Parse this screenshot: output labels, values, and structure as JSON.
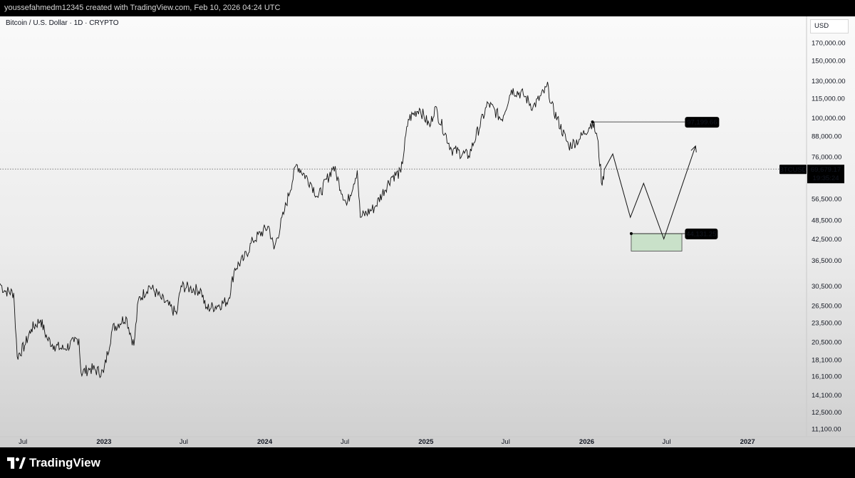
{
  "header": {
    "caption": "youssefahmedm12345 created with TradingView.com, Feb 10, 2026 04:24 UTC"
  },
  "chart": {
    "symbol_title": "Bitcoin / U.S. Dollar · 1D · CRYPTO",
    "currency": "USD"
  },
  "footer": {
    "brand": "TradingView"
  },
  "chart_data": {
    "type": "line",
    "title": "Bitcoin / U.S. Dollar · 1D · CRYPTO",
    "y_scale": "log",
    "ylim": [
      10500,
      205000
    ],
    "xlim": [
      "2022-05-10",
      "2027-05-15"
    ],
    "y_ticks": [
      "170,000.00",
      "150,000.00",
      "130,000.00",
      "115,000.00",
      "100,000.00",
      "88,000.00",
      "76,000.00",
      "56,500.00",
      "48,500.00",
      "42,500.00",
      "36,500.00",
      "30,500.00",
      "26,500.00",
      "23,500.00",
      "20,500.00",
      "18,100.00",
      "16,100.00",
      "14,100.00",
      "12,500.00",
      "11,100.00"
    ],
    "x_ticks": [
      {
        "label": "Jul",
        "date": "2022-07-01",
        "bold": false
      },
      {
        "label": "2023",
        "date": "2023-01-01",
        "bold": true
      },
      {
        "label": "Jul",
        "date": "2023-07-01",
        "bold": false
      },
      {
        "label": "2024",
        "date": "2024-01-01",
        "bold": true
      },
      {
        "label": "Jul",
        "date": "2024-07-01",
        "bold": false
      },
      {
        "label": "2025",
        "date": "2025-01-01",
        "bold": true
      },
      {
        "label": "Jul",
        "date": "2025-07-01",
        "bold": false
      },
      {
        "label": "2026",
        "date": "2026-01-01",
        "bold": true
      },
      {
        "label": "Jul",
        "date": "2026-07-01",
        "bold": false
      },
      {
        "label": "2027",
        "date": "2027-01-01",
        "bold": true
      }
    ],
    "series": [
      {
        "points": [
          [
            "2022-05-10",
            31000
          ],
          [
            "2022-05-20",
            29500
          ],
          [
            "2022-06-10",
            29000
          ],
          [
            "2022-06-18",
            18500
          ],
          [
            "2022-07-05",
            20000
          ],
          [
            "2022-07-20",
            22500
          ],
          [
            "2022-08-10",
            24000
          ],
          [
            "2022-08-25",
            21000
          ],
          [
            "2022-09-10",
            20000
          ],
          [
            "2022-10-01",
            19500
          ],
          [
            "2022-10-25",
            20500
          ],
          [
            "2022-11-05",
            21000
          ],
          [
            "2022-11-10",
            16500
          ],
          [
            "2022-12-01",
            17000
          ],
          [
            "2022-12-31",
            16500
          ],
          [
            "2023-01-20",
            22500
          ],
          [
            "2023-02-20",
            24500
          ],
          [
            "2023-03-10",
            20000
          ],
          [
            "2023-03-20",
            27500
          ],
          [
            "2023-04-14",
            30500
          ],
          [
            "2023-05-10",
            28000
          ],
          [
            "2023-06-15",
            25000
          ],
          [
            "2023-06-25",
            30500
          ],
          [
            "2023-07-15",
            30000
          ],
          [
            "2023-08-10",
            29500
          ],
          [
            "2023-08-20",
            26000
          ],
          [
            "2023-09-15",
            26500
          ],
          [
            "2023-10-10",
            27500
          ],
          [
            "2023-10-25",
            34500
          ],
          [
            "2023-11-15",
            37000
          ],
          [
            "2023-12-05",
            42000
          ],
          [
            "2024-01-10",
            46500
          ],
          [
            "2024-01-22",
            39500
          ],
          [
            "2024-02-15",
            52000
          ],
          [
            "2024-03-13",
            72000
          ],
          [
            "2024-04-15",
            63000
          ],
          [
            "2024-05-01",
            57000
          ],
          [
            "2024-06-05",
            71000
          ],
          [
            "2024-07-05",
            54000
          ],
          [
            "2024-07-29",
            69000
          ],
          [
            "2024-08-05",
            49500
          ],
          [
            "2024-09-06",
            53000
          ],
          [
            "2024-10-15",
            66000
          ],
          [
            "2024-11-05",
            68000
          ],
          [
            "2024-11-22",
            99000
          ],
          [
            "2024-12-17",
            107000
          ],
          [
            "2025-01-10",
            94000
          ],
          [
            "2025-01-21",
            108000
          ],
          [
            "2025-02-28",
            80000
          ],
          [
            "2025-04-08",
            76500
          ],
          [
            "2025-05-22",
            111000
          ],
          [
            "2025-06-22",
            99000
          ],
          [
            "2025-07-14",
            122000
          ],
          [
            "2025-08-10",
            118000
          ],
          [
            "2025-09-01",
            108000
          ],
          [
            "2025-10-06",
            125000
          ],
          [
            "2025-10-11",
            111000
          ],
          [
            "2025-11-21",
            82000
          ],
          [
            "2025-12-15",
            86000
          ],
          [
            "2026-01-14",
            97200
          ],
          [
            "2026-01-25",
            87000
          ],
          [
            "2026-02-05",
            62000
          ],
          [
            "2026-02-10",
            69679
          ]
        ]
      }
    ],
    "current_price": {
      "ticker": "BTCUSD",
      "price": "69,679.17",
      "countdown": "19:35:24",
      "value": 69679.17
    },
    "drawings": {
      "projected_path": [
        [
          "2026-02-10",
          69500
        ],
        [
          "2026-03-01",
          77500
        ],
        [
          "2026-04-10",
          49500
        ],
        [
          "2026-05-10",
          63000
        ],
        [
          "2026-06-25",
          42500
        ],
        [
          "2026-09-05",
          82000
        ]
      ],
      "resistance_label": "97,199.66",
      "resistance_value": 97199.66,
      "resistance_start": "2026-01-14",
      "resistance_end": "2026-09-05",
      "support_label": "44,131.25",
      "support_value": 44131.25,
      "zone": {
        "start": "2026-04-12",
        "end": "2026-08-05",
        "top": 44131.25,
        "bottom": 39000
      }
    }
  }
}
